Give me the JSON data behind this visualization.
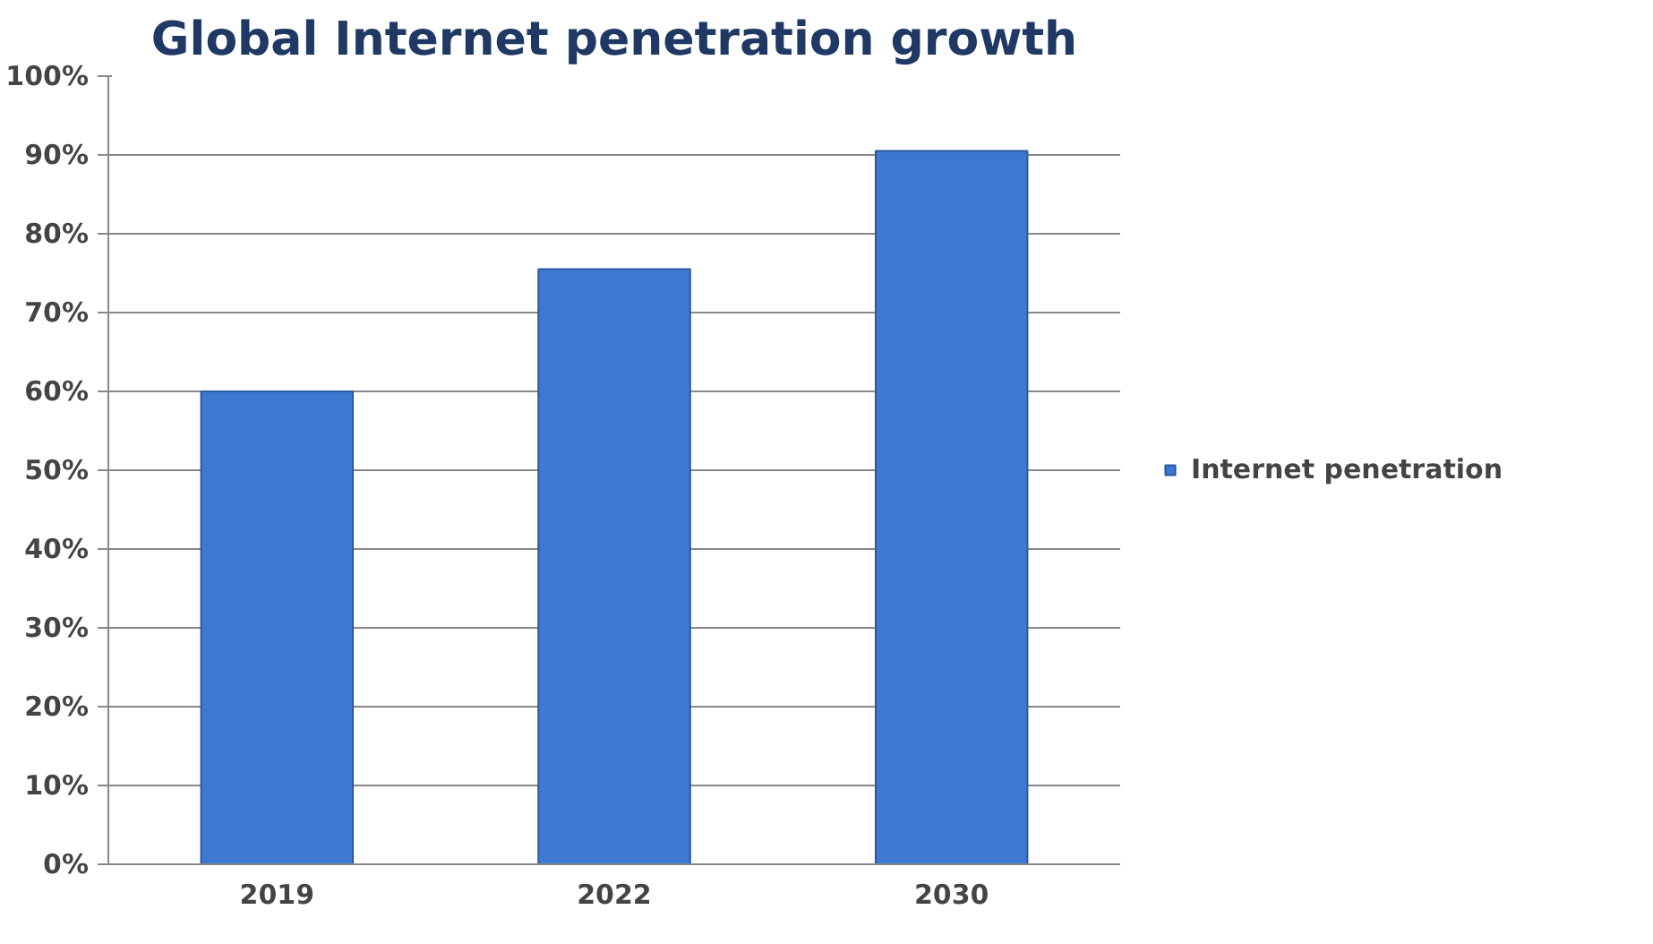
{
  "chart_data": {
    "type": "bar",
    "title": "Global Internet penetration growth",
    "categories": [
      "2019",
      "2022",
      "2030"
    ],
    "series": [
      {
        "name": "Internet penetration",
        "color": "#3f78d0",
        "values": [
          60,
          75.5,
          90.5
        ]
      }
    ],
    "ylim": [
      0,
      100
    ],
    "yticks": [
      {
        "value": 0,
        "label": "0%"
      },
      {
        "value": 10,
        "label": "10%"
      },
      {
        "value": 20,
        "label": "20%"
      },
      {
        "value": 30,
        "label": "30%"
      },
      {
        "value": 40,
        "label": "40%"
      },
      {
        "value": 50,
        "label": "50%"
      },
      {
        "value": 60,
        "label": "60%"
      },
      {
        "value": 70,
        "label": "70%"
      },
      {
        "value": 80,
        "label": "80%"
      },
      {
        "value": 90,
        "label": "90%"
      },
      {
        "value": 100,
        "label": "100%"
      }
    ],
    "grid": "y",
    "legend": "right"
  }
}
